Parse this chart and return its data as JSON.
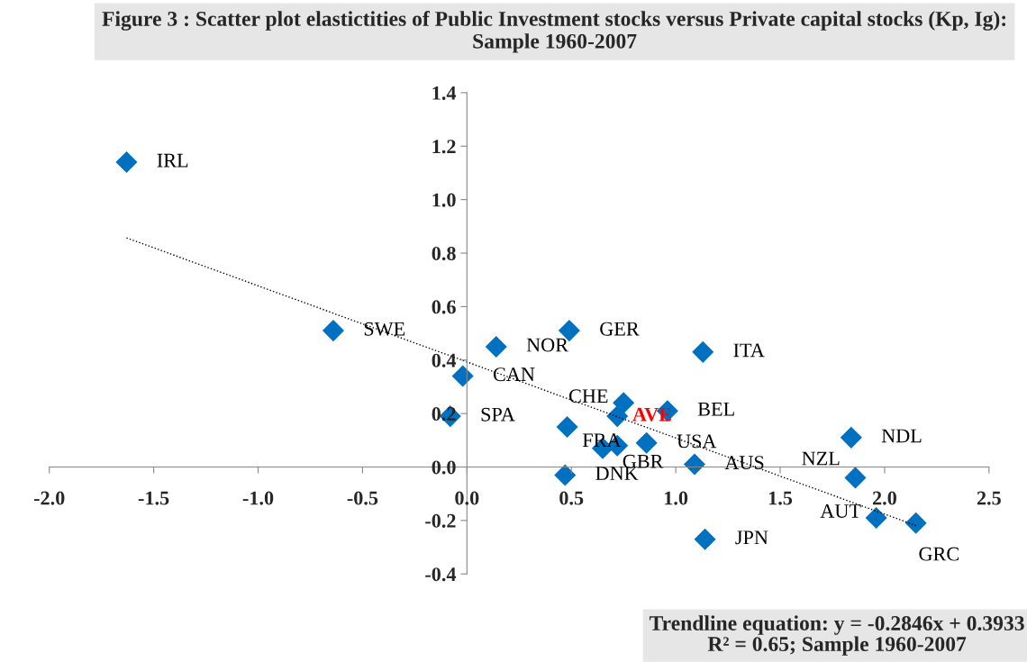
{
  "chart_data": {
    "type": "scatter",
    "title": "Figure 3 : Scatter plot elastictities of Public Investment stocks versus Private capital stocks (Kp, Ig): Sample 1960-2007",
    "series": [
      {
        "type": "scatter",
        "color": "#0070c0",
        "x": [
          -1.63,
          -0.64,
          0.14,
          0.49,
          -0.02,
          1.13,
          0.75,
          0.72,
          0.96,
          -0.08,
          0.48,
          0.65,
          0.72,
          0.86,
          0.47,
          1.09,
          1.84,
          1.86,
          1.96,
          2.15,
          1.14
        ],
        "values": [
          1.14,
          0.51,
          0.45,
          0.51,
          0.34,
          0.43,
          0.24,
          0.19,
          0.21,
          0.19,
          0.15,
          0.07,
          0.08,
          0.09,
          -0.03,
          0.01,
          0.11,
          -0.04,
          -0.19,
          -0.21,
          -0.27
        ],
        "marker": "diamond"
      },
      {
        "type": "line",
        "color": "#000000",
        "x": [
          -1.63,
          2.15
        ],
        "values": [
          0.857,
          -0.219
        ],
        "line_style": "dotted"
      }
    ],
    "xlim": [
      -2.0,
      2.5
    ],
    "xticks": [
      {
        "value": -2,
        "label": "-2.0"
      },
      -1.5,
      {
        "value": -1,
        "label": "-1.0"
      },
      -0.5,
      {
        "value": 0,
        "label": "0.0"
      },
      0.5,
      {
        "value": 1,
        "label": "1.0"
      },
      1.5,
      {
        "value": 2,
        "label": "2.0"
      },
      2.5
    ],
    "ylim": [
      -0.4,
      1.4
    ],
    "yticks": [
      -0.4,
      -0.2,
      {
        "value": 0,
        "label": "0.0"
      },
      0.2,
      0.4,
      0.6,
      0.8,
      {
        "value": 1,
        "label": "1.0"
      },
      1.2,
      1.4
    ],
    "grid": false,
    "legend": false,
    "annotations": [
      {
        "text": "IRL",
        "x": -1.63,
        "y": 1.14
      },
      {
        "text": "SWE",
        "x": -0.64,
        "y": 0.51
      },
      {
        "text": "NOR",
        "x": 0.14,
        "y": 0.45
      },
      {
        "text": "GER",
        "x": 0.49,
        "y": 0.51
      },
      {
        "text": "CAN",
        "x": -0.02,
        "y": 0.34
      },
      {
        "text": "ITA",
        "x": 1.13,
        "y": 0.43
      },
      {
        "text": "CHE",
        "x": 0.75,
        "y": 0.24
      },
      {
        "text": "AVE",
        "x": 0.72,
        "y": 0.19
      },
      {
        "text": "BEL",
        "x": 0.96,
        "y": 0.21
      },
      {
        "text": "SPA",
        "x": -0.08,
        "y": 0.19
      },
      {
        "text": "FRA",
        "x": 0.48,
        "y": 0.15
      },
      {
        "text": "GBR",
        "x": 0.72,
        "y": 0.08
      },
      {
        "text": "USA",
        "x": 0.86,
        "y": 0.09
      },
      {
        "text": "DNK",
        "x": 0.47,
        "y": -0.03
      },
      {
        "text": "AUS",
        "x": 1.09,
        "y": 0.01
      },
      {
        "text": "NDL",
        "x": 1.84,
        "y": 0.11
      },
      {
        "text": "NZL",
        "x": 1.86,
        "y": -0.04
      },
      {
        "text": "AUT",
        "x": 1.96,
        "y": -0.19
      },
      {
        "text": "GRC",
        "x": 2.15,
        "y": -0.21
      },
      {
        "text": "JPN",
        "x": 1.14,
        "y": -0.27
      },
      "Trendline equation: y = -0.2846x + 0.3933\nR² = 0.65; Sample 1960-2007"
    ]
  }
}
